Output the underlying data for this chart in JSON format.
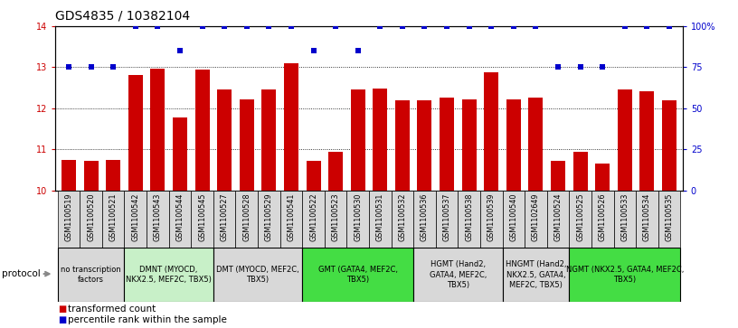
{
  "title": "GDS4835 / 10382104",
  "samples": [
    "GSM1100519",
    "GSM1100520",
    "GSM1100521",
    "GSM1100542",
    "GSM1100543",
    "GSM1100544",
    "GSM1100545",
    "GSM1100527",
    "GSM1100528",
    "GSM1100529",
    "GSM1100541",
    "GSM1100522",
    "GSM1100523",
    "GSM1100530",
    "GSM1100531",
    "GSM1100532",
    "GSM1100536",
    "GSM1100537",
    "GSM1100538",
    "GSM1100539",
    "GSM1100540",
    "GSM1102649",
    "GSM1100524",
    "GSM1100525",
    "GSM1100526",
    "GSM1100533",
    "GSM1100534",
    "GSM1100535"
  ],
  "bar_values": [
    10.75,
    10.72,
    10.75,
    12.82,
    12.97,
    11.78,
    12.95,
    12.45,
    12.22,
    12.45,
    13.1,
    10.72,
    10.93,
    12.45,
    12.47,
    12.2,
    12.2,
    12.25,
    12.22,
    12.88,
    12.22,
    12.25,
    10.72,
    10.93,
    10.65,
    12.45,
    12.42,
    12.2
  ],
  "percentile_values": [
    75,
    75,
    75,
    100,
    100,
    85,
    100,
    100,
    100,
    100,
    100,
    85,
    100,
    85,
    100,
    100,
    100,
    100,
    100,
    100,
    100,
    100,
    75,
    75,
    75,
    100,
    100,
    100
  ],
  "protocols": [
    {
      "label": "no transcription\nfactors",
      "start": 0,
      "end": 3,
      "color": "#d8d8d8"
    },
    {
      "label": "DMNT (MYOCD,\nNKX2.5, MEF2C, TBX5)",
      "start": 3,
      "end": 7,
      "color": "#c8f0c8"
    },
    {
      "label": "DMT (MYOCD, MEF2C,\nTBX5)",
      "start": 7,
      "end": 11,
      "color": "#d8d8d8"
    },
    {
      "label": "GMT (GATA4, MEF2C,\nTBX5)",
      "start": 11,
      "end": 16,
      "color": "#44dd44"
    },
    {
      "label": "HGMT (Hand2,\nGATA4, MEF2C,\nTBX5)",
      "start": 16,
      "end": 20,
      "color": "#d8d8d8"
    },
    {
      "label": "HNGMT (Hand2,\nNKX2.5, GATA4,\nMEF2C, TBX5)",
      "start": 20,
      "end": 23,
      "color": "#d8d8d8"
    },
    {
      "label": "NGMT (NKX2.5, GATA4, MEF2C,\nTBX5)",
      "start": 23,
      "end": 28,
      "color": "#44dd44"
    }
  ],
  "ylim_left": [
    10,
    14
  ],
  "ylim_right": [
    0,
    100
  ],
  "yticks_left": [
    10,
    11,
    12,
    13,
    14
  ],
  "yticks_right": [
    0,
    25,
    50,
    75,
    100
  ],
  "ytick_labels_right": [
    "0",
    "25",
    "50",
    "75",
    "100%"
  ],
  "bar_color": "#cc0000",
  "percentile_color": "#0000cc",
  "background_color": "#ffffff",
  "title_fontsize": 10,
  "tick_fontsize": 7,
  "legend_fontsize": 7.5,
  "protocol_label_fontsize": 6,
  "sample_fontsize": 5.8
}
